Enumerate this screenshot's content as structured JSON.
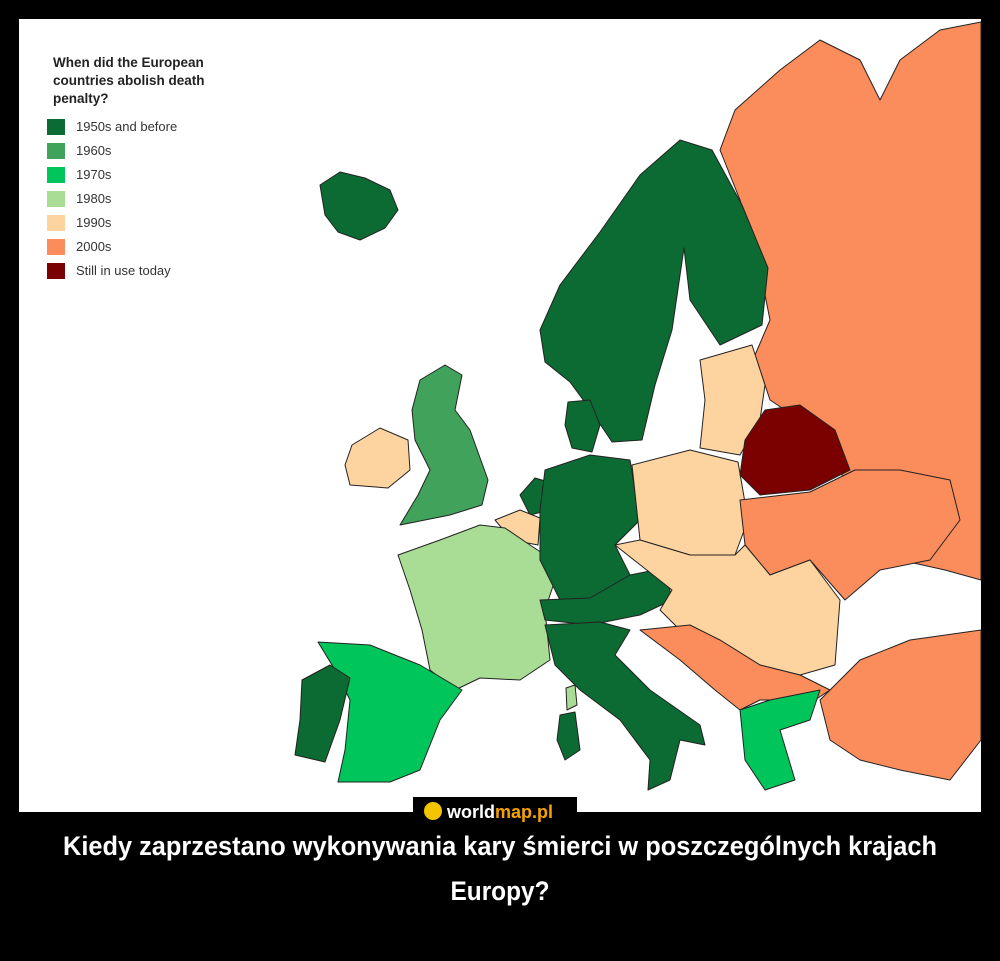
{
  "legend": {
    "title": [
      "When did the European",
      "countries abolish death",
      "penalty?"
    ],
    "items": [
      {
        "label": "1950s and before",
        "color": "#0b6b32"
      },
      {
        "label": "1960s",
        "color": "#41a35b"
      },
      {
        "label": "1970s",
        "color": "#00c55b"
      },
      {
        "label": "1980s",
        "color": "#a9dc94"
      },
      {
        "label": "1990s",
        "color": "#fdd3a0"
      },
      {
        "label": "2000s",
        "color": "#fb8c5b"
      },
      {
        "label": "Still in use today",
        "color": "#7b0000"
      }
    ]
  },
  "logo": {
    "left": "world",
    "right": "map.pl"
  },
  "caption": [
    "Kiedy zaprzestano wykonywania kary śmierci w poszczególnych krajach",
    "Europy?"
  ]
}
